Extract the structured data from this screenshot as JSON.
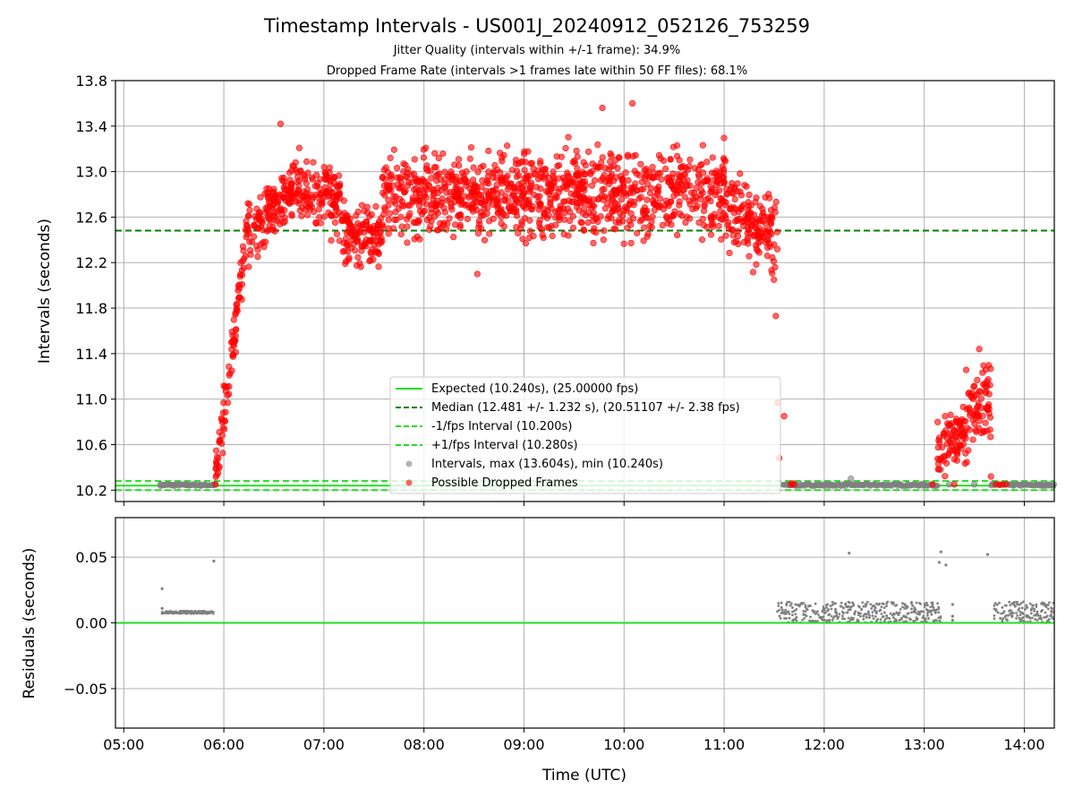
{
  "chart_data": [
    {
      "type": "scatter",
      "title": "Timestamp Intervals - US001J_20240912_052126_753259",
      "subtitle_lines": [
        "Jitter Quality (intervals within +/-1 frame): 34.9%",
        "Dropped Frame Rate (intervals >1 frames late within 50 FF files): 68.1%"
      ],
      "xlabel": "",
      "ylabel": "Intervals (seconds)",
      "xlim": [
        "04:55",
        "14:18"
      ],
      "ylim": [
        10.1,
        13.8
      ],
      "y_ticks": [
        "10.2",
        "10.6",
        "11.0",
        "11.4",
        "11.8",
        "12.2",
        "12.6",
        "13.0",
        "13.4",
        "13.8"
      ],
      "grid": true,
      "legend_position": "lower-center",
      "lines": {
        "expected": {
          "label": "Expected (10.240s), (25.00000 fps)",
          "y": 10.24,
          "color": "#22dd22",
          "style": "solid"
        },
        "median": {
          "label": "Median (12.481 +/- 1.232 s), (20.51107 +/- 2.38 fps)",
          "y": 12.481,
          "color": "#008000",
          "style": "dashed"
        },
        "minus_fps": {
          "label": "-1/fps Interval (10.200s)",
          "y": 10.2,
          "color": "#22dd22",
          "style": "dashed"
        },
        "plus_fps": {
          "label": "+1/fps Interval (10.280s)",
          "y": 10.28,
          "color": "#22dd22",
          "style": "dashed"
        }
      },
      "series": [
        {
          "name": "Intervals, max (13.604s), min (10.240s)",
          "color": "#808080",
          "points": [
            [
              "05:22",
              10.25
            ],
            [
              "05:30",
              10.24
            ],
            [
              "05:38",
              10.25
            ],
            [
              "05:46",
              10.24
            ],
            [
              "05:54",
              10.25
            ],
            [
              "11:38",
              10.25
            ],
            [
              "11:50",
              10.25
            ],
            [
              "12:05",
              10.24
            ],
            [
              "12:16",
              10.3
            ],
            [
              "12:30",
              10.25
            ],
            [
              "12:45",
              10.25
            ],
            [
              "13:00",
              10.25
            ],
            [
              "13:09",
              10.47
            ],
            [
              "13:10",
              10.38
            ],
            [
              "13:15",
              10.25
            ],
            [
              "13:30",
              10.25
            ],
            [
              "13:48",
              10.25
            ],
            [
              "14:00",
              10.25
            ],
            [
              "14:10",
              10.25
            ]
          ]
        },
        {
          "name": "Possible Dropped Frames",
          "color": "#ff0000",
          "segments": [
            {
              "from": "05:55",
              "to": "06:14",
              "y_start": 10.3,
              "y_end": 12.45,
              "spread": 0.3
            },
            {
              "from": "06:14",
              "to": "06:45",
              "y_start": 12.45,
              "y_end": 12.9,
              "spread": 0.35
            },
            {
              "from": "06:45",
              "to": "07:10",
              "y_start": 12.85,
              "y_end": 12.75,
              "spread": 0.45
            },
            {
              "from": "07:10",
              "to": "07:35",
              "y_start": 12.5,
              "y_end": 12.4,
              "spread": 0.4
            },
            {
              "from": "07:35",
              "to": "11:00",
              "y_start": 12.8,
              "y_end": 12.8,
              "spread": 0.55
            },
            {
              "from": "11:00",
              "to": "11:32",
              "y_start": 12.75,
              "y_end": 12.4,
              "spread": 0.55
            },
            {
              "from": "13:08",
              "to": "13:25",
              "y_start": 10.55,
              "y_end": 10.75,
              "spread": 0.4
            },
            {
              "from": "13:25",
              "to": "13:40",
              "y_start": 10.8,
              "y_end": 11.0,
              "spread": 0.5
            }
          ],
          "points": [
            [
              "06:34",
              13.42
            ],
            [
              "08:32",
              12.1
            ],
            [
              "09:47",
              13.56
            ],
            [
              "10:05",
              13.6
            ],
            [
              "11:31",
              11.73
            ],
            [
              "11:32",
              10.97
            ],
            [
              "11:33",
              10.48
            ],
            [
              "11:36",
              10.85
            ],
            [
              "11:40",
              10.25
            ],
            [
              "11:41",
              10.26
            ],
            [
              "11:42",
              10.25
            ],
            [
              "13:05",
              10.25
            ],
            [
              "13:18",
              10.25
            ],
            [
              "13:33",
              11.44
            ],
            [
              "13:40",
              10.32
            ],
            [
              "13:43",
              10.25
            ],
            [
              "13:45",
              10.25
            ],
            [
              "13:47",
              10.25
            ],
            [
              "13:49",
              10.25
            ]
          ]
        }
      ]
    },
    {
      "type": "scatter",
      "xlabel": "Time (UTC)",
      "ylabel": "Residuals (seconds)",
      "xlim": [
        "04:55",
        "14:18"
      ],
      "ylim": [
        -0.08,
        0.08
      ],
      "y_ticks": [
        "−0.05",
        "0.00",
        "0.05"
      ],
      "x_ticks": [
        "05:00",
        "06:00",
        "07:00",
        "08:00",
        "09:00",
        "10:00",
        "11:00",
        "12:00",
        "13:00",
        "14:00"
      ],
      "grid": true,
      "zero_line_color": "#22dd22",
      "series": [
        {
          "name": "",
          "color": "#808080",
          "bands": [
            {
              "from": "05:23",
              "to": "05:54",
              "y_low": 0.007,
              "y_high": 0.009
            },
            {
              "from": "11:32",
              "to": "13:10",
              "y_low": 0.0,
              "y_high": 0.016
            },
            {
              "from": "13:42",
              "to": "14:18",
              "y_low": 0.0,
              "y_high": 0.016
            }
          ],
          "points": [
            [
              "05:23",
              0.026
            ],
            [
              "05:23",
              0.011
            ],
            [
              "05:54",
              0.047
            ],
            [
              "12:15",
              0.053
            ],
            [
              "13:09",
              0.046
            ],
            [
              "13:10",
              0.054
            ],
            [
              "13:13",
              0.044
            ],
            [
              "13:17",
              0.014
            ],
            [
              "13:17",
              0.005
            ],
            [
              "13:17",
              0.002
            ],
            [
              "13:38",
              0.052
            ]
          ]
        }
      ]
    }
  ]
}
